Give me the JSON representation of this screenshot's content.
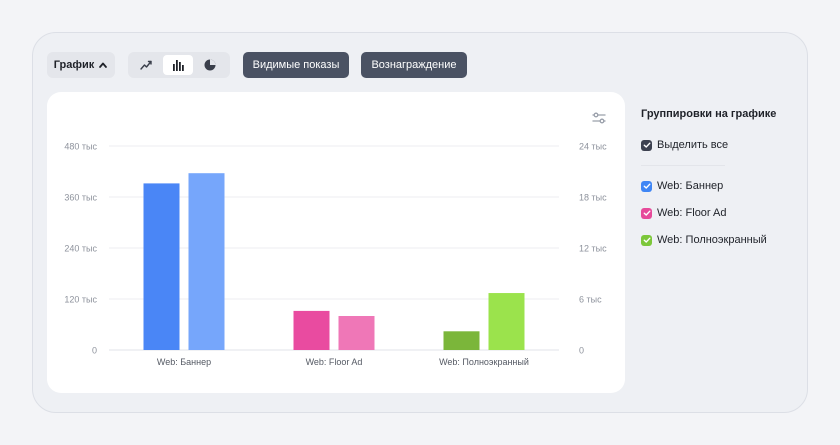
{
  "toolbar": {
    "view_label": "График",
    "chart_types": [
      {
        "name": "line",
        "icon": "trend-line-icon",
        "active": false
      },
      {
        "name": "bar",
        "icon": "bar-chart-icon",
        "active": true
      },
      {
        "name": "pie",
        "icon": "pie-chart-icon",
        "active": false
      }
    ],
    "metric_buttons": [
      "Видимые показы",
      "Вознаграждение"
    ]
  },
  "sidebar": {
    "title": "Группировки на графике",
    "select_all": {
      "label": "Выделить все",
      "checked": true,
      "color": "#3c4150"
    },
    "items": [
      {
        "label": "Web: Баннер",
        "checked": true,
        "color": "#3f86f5"
      },
      {
        "label": "Web: Floor Ad",
        "checked": true,
        "color": "#e64a9a"
      },
      {
        "label": "Web: Полноэкранный",
        "checked": true,
        "color": "#7cc73a"
      }
    ]
  },
  "chart_data": {
    "type": "bar",
    "categories": [
      "Web: Баннер",
      "Web: Floor Ad",
      "Web: Полноэкранный"
    ],
    "series": [
      {
        "axis": "left",
        "values": [
          392000,
          92000,
          44000
        ],
        "colors": [
          "#4a86f6",
          "#e94ba0",
          "#7bb63a"
        ]
      },
      {
        "axis": "right",
        "values": [
          20.8,
          4.0,
          6.7
        ],
        "colors": [
          "#76a6fb",
          "#ef77b7",
          "#9be34c"
        ]
      }
    ],
    "y_left": {
      "ticks": [
        "0",
        "120 тыс",
        "240 тыс",
        "360 тыс",
        "480 тыс"
      ],
      "min": 0,
      "max": 480000
    },
    "y_right": {
      "ticks": [
        "0",
        "6 тыс",
        "12 тыс",
        "18 тыс",
        "24 тыс"
      ],
      "min": 0,
      "max": 24
    },
    "grid": true
  }
}
